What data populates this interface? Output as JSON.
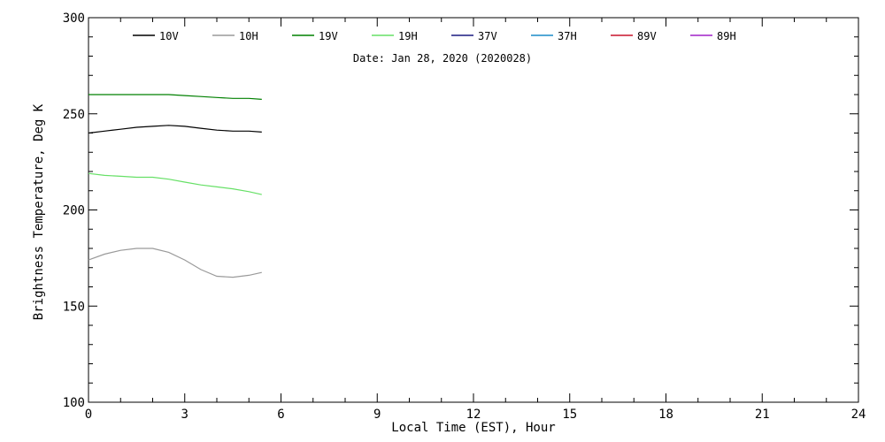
{
  "chart_data": {
    "type": "line",
    "title": "",
    "subtitle": "Date: Jan 28, 2020 (2020028)",
    "xlabel": "Local Time (EST), Hour",
    "ylabel": "Brightness Temperature, Deg K",
    "xlim": [
      0,
      24
    ],
    "ylim": [
      100,
      300
    ],
    "xticks": [
      "0",
      "3",
      "6",
      "9",
      "12",
      "15",
      "18",
      "21",
      "24"
    ],
    "yticks": [
      "100",
      "150",
      "200",
      "250",
      "300"
    ],
    "grid": false,
    "legend_position": "top",
    "series": [
      {
        "name": "10V",
        "color": "#000000",
        "x": [
          0,
          0.5,
          1.0,
          1.5,
          2.0,
          2.5,
          3.0,
          3.5,
          4.0,
          4.5,
          5.0,
          5.4
        ],
        "y": [
          240,
          241,
          242,
          243,
          243.5,
          244,
          243.5,
          242.5,
          241.5,
          241,
          241,
          240.5
        ]
      },
      {
        "name": "10H",
        "color": "#9a9a9a",
        "x": [
          0,
          0.5,
          1.0,
          1.5,
          2.0,
          2.5,
          3.0,
          3.5,
          4.0,
          4.5,
          5.0,
          5.4
        ],
        "y": [
          174,
          177,
          179,
          180,
          180,
          178,
          174,
          169,
          165.5,
          165,
          166,
          167.5
        ]
      },
      {
        "name": "19V",
        "color": "#008000",
        "x": [
          0,
          0.5,
          1.0,
          1.5,
          2.0,
          2.5,
          3.0,
          3.5,
          4.0,
          4.5,
          5.0,
          5.4
        ],
        "y": [
          260,
          260,
          260,
          260,
          260,
          260,
          259.5,
          259,
          258.5,
          258,
          258,
          257.5
        ]
      },
      {
        "name": "19H",
        "color": "#66e066",
        "x": [
          0,
          0.5,
          1.0,
          1.5,
          2.0,
          2.5,
          3.0,
          3.5,
          4.0,
          4.5,
          5.0,
          5.4
        ],
        "y": [
          219,
          218,
          217.5,
          217,
          217,
          216,
          214.5,
          213,
          212,
          211,
          209.5,
          208
        ]
      },
      {
        "name": "37V",
        "color": "#1a1a80",
        "x": [],
        "y": []
      },
      {
        "name": "37H",
        "color": "#1a8cc8",
        "x": [],
        "y": []
      },
      {
        "name": "89V",
        "color": "#c8142c",
        "x": [],
        "y": []
      },
      {
        "name": "89H",
        "color": "#a020c8",
        "x": [],
        "y": []
      }
    ]
  }
}
